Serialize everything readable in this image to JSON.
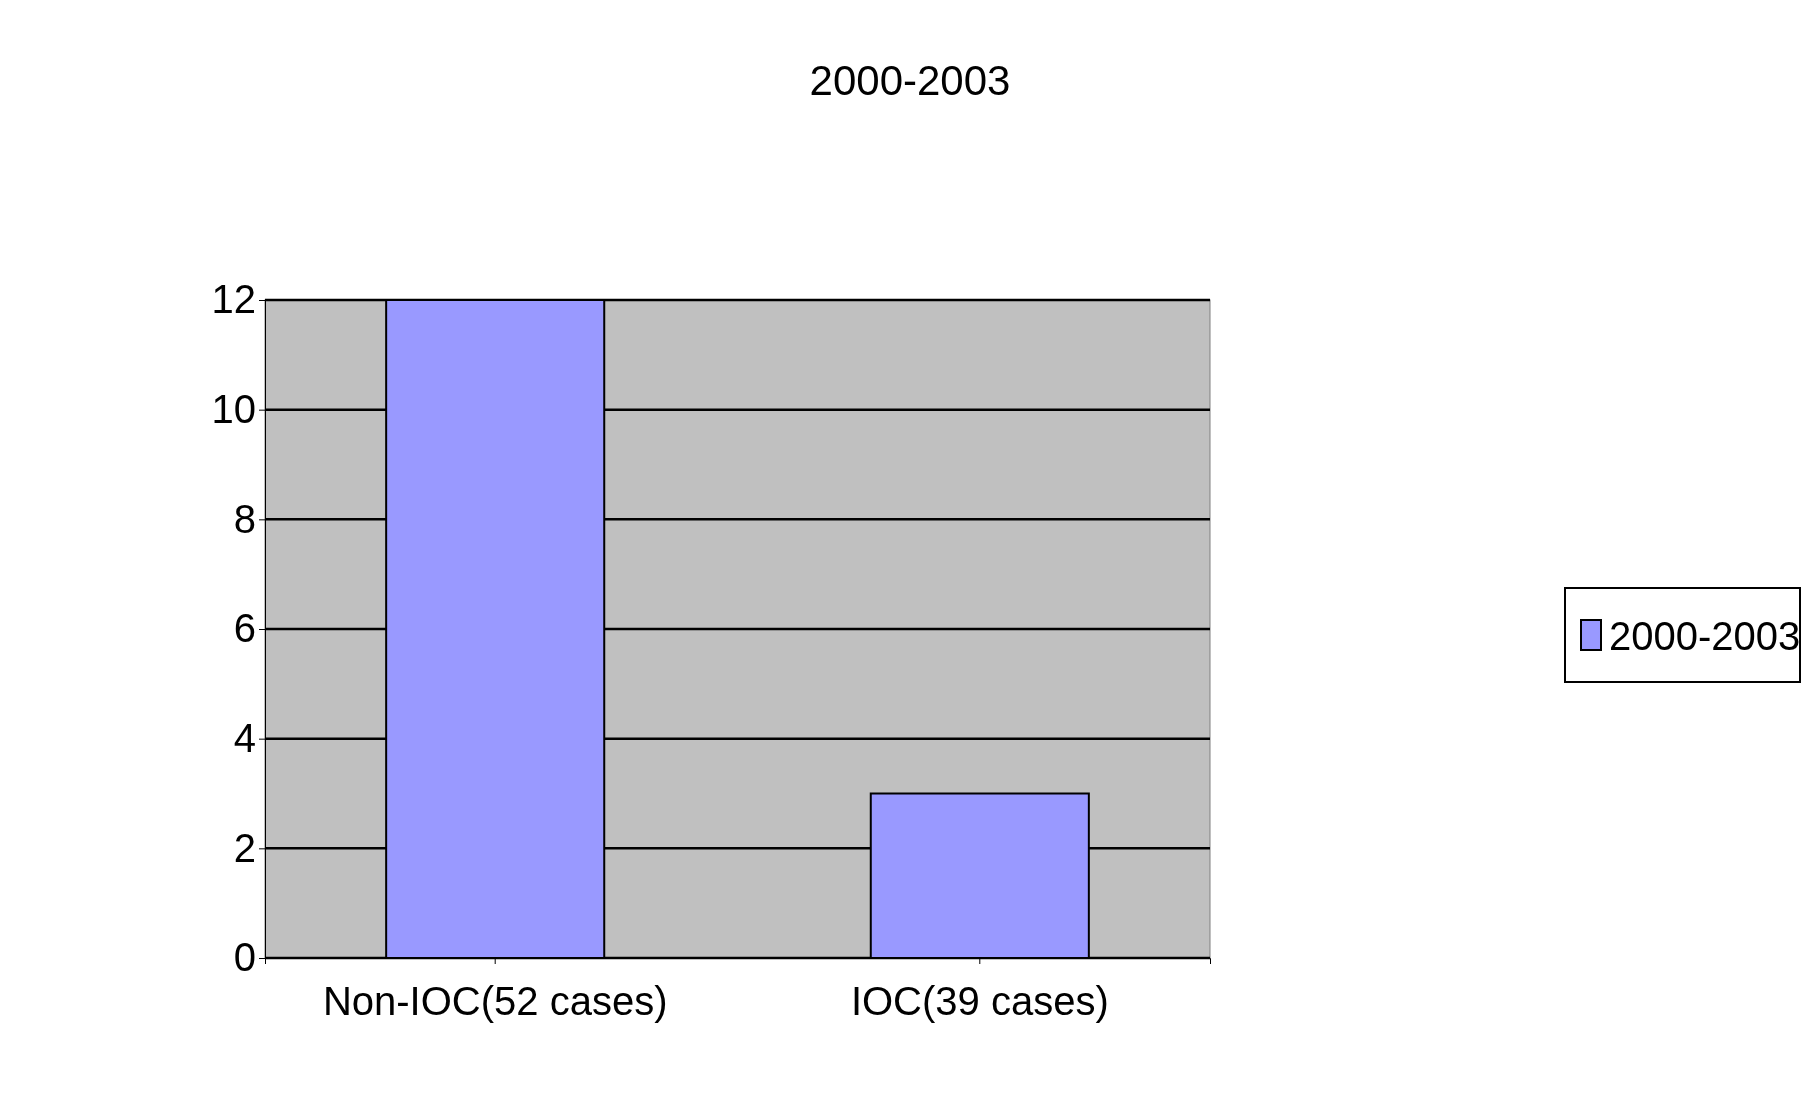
{
  "chart_data": {
    "type": "bar",
    "title": "2000-2003",
    "categories": [
      "Non-IOC(52 cases)",
      "IOC(39 cases)"
    ],
    "series": [
      {
        "name": "2000-2003",
        "color": "#9999ff",
        "values": [
          12,
          3
        ]
      }
    ],
    "ylim": [
      0,
      12
    ],
    "yticks": [
      0,
      2,
      4,
      6,
      8,
      10,
      12
    ],
    "grid": "y",
    "legend": "right"
  }
}
